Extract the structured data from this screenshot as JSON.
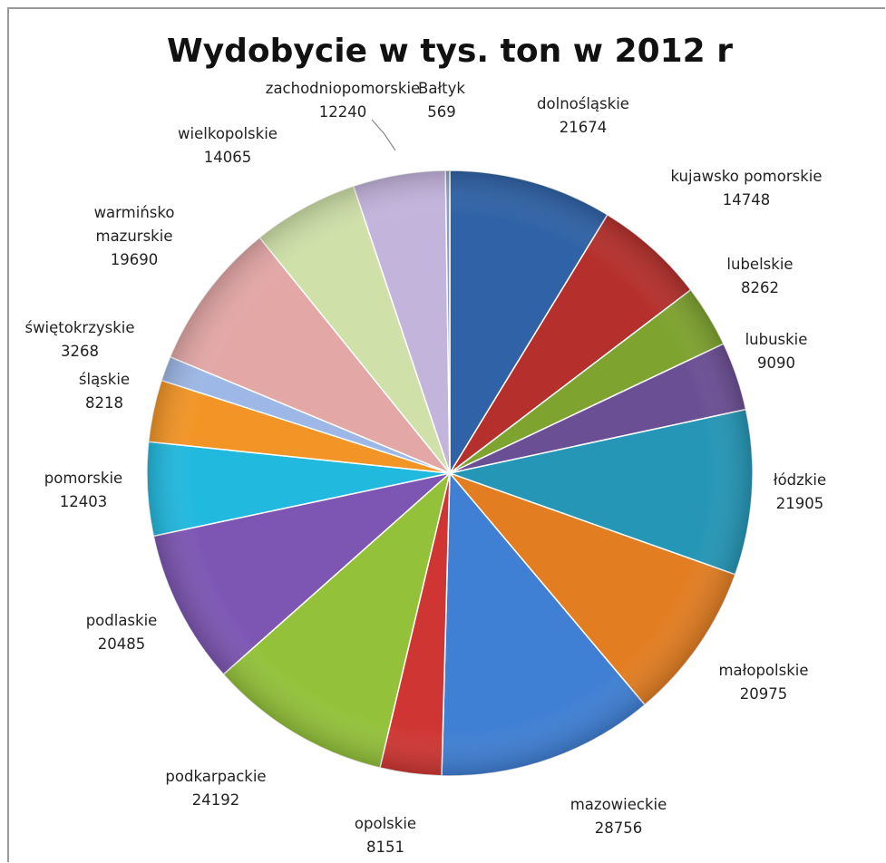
{
  "chart_data": {
    "type": "pie",
    "title": "Wydobycie w tys. ton w 2012 r",
    "slices": [
      {
        "label": "dolnośląskie",
        "value": 21674,
        "color": "#2f62a6"
      },
      {
        "label": "kujawsko pomorskie",
        "value": 14748,
        "color": "#b5302c"
      },
      {
        "label": "lubelskie",
        "value": 8262,
        "color": "#7ea32f"
      },
      {
        "label": "lubuskie",
        "value": 9090,
        "color": "#6b4f94"
      },
      {
        "label": "łódzkie",
        "value": 21905,
        "color": "#2596b6"
      },
      {
        "label": "małopolskie",
        "value": 20975,
        "color": "#e27d22"
      },
      {
        "label": "mazowieckie",
        "value": 28756,
        "color": "#3f7fd4"
      },
      {
        "label": "opolskie",
        "value": 8151,
        "color": "#cf3633"
      },
      {
        "label": "podkarpackie",
        "value": 24192,
        "color": "#93c23a"
      },
      {
        "label": "podlaskie",
        "value": 20485,
        "color": "#7d56b3"
      },
      {
        "label": "pomorskie",
        "value": 12403,
        "color": "#22b9df"
      },
      {
        "label": "śląskie",
        "value": 8218,
        "color": "#f39526"
      },
      {
        "label": "świętokrzyskie",
        "value": 3268,
        "color": "#9db8e6"
      },
      {
        "label": "warmińsko mazurskie",
        "value": 19690,
        "color": "#e3a7a6"
      },
      {
        "label": "wielkopolskie",
        "value": 14065,
        "color": "#cfe0a8"
      },
      {
        "label": "zachodniopomorskie",
        "value": 12240,
        "color": "#c3b4dc"
      },
      {
        "label": "Bałtyk",
        "value": 569,
        "color": "#8aa0bf"
      }
    ]
  },
  "labels": [
    {
      "lines": [
        "dolnośląskie",
        "21674"
      ]
    },
    {
      "lines": [
        "kujawsko pomorskie",
        "14748"
      ]
    },
    {
      "lines": [
        "lubelskie",
        "8262"
      ]
    },
    {
      "lines": [
        "lubuskie",
        "9090"
      ]
    },
    {
      "lines": [
        "łódzkie",
        "21905"
      ]
    },
    {
      "lines": [
        "małopolskie",
        "20975"
      ]
    },
    {
      "lines": [
        "mazowieckie",
        "28756"
      ]
    },
    {
      "lines": [
        "opolskie",
        "8151"
      ]
    },
    {
      "lines": [
        "podkarpackie",
        "24192"
      ]
    },
    {
      "lines": [
        "podlaskie",
        "20485"
      ]
    },
    {
      "lines": [
        "pomorskie",
        "12403"
      ]
    },
    {
      "lines": [
        "śląskie",
        "8218"
      ]
    },
    {
      "lines": [
        "świętokrzyskie",
        "3268"
      ]
    },
    {
      "lines": [
        "warmińsko",
        "mazurskie",
        "19690"
      ]
    },
    {
      "lines": [
        "wielkopolskie",
        "14065"
      ]
    },
    {
      "lines": [
        "zachodniopomorskie",
        "12240"
      ]
    },
    {
      "lines": [
        "Bałtyk",
        "569"
      ]
    }
  ]
}
